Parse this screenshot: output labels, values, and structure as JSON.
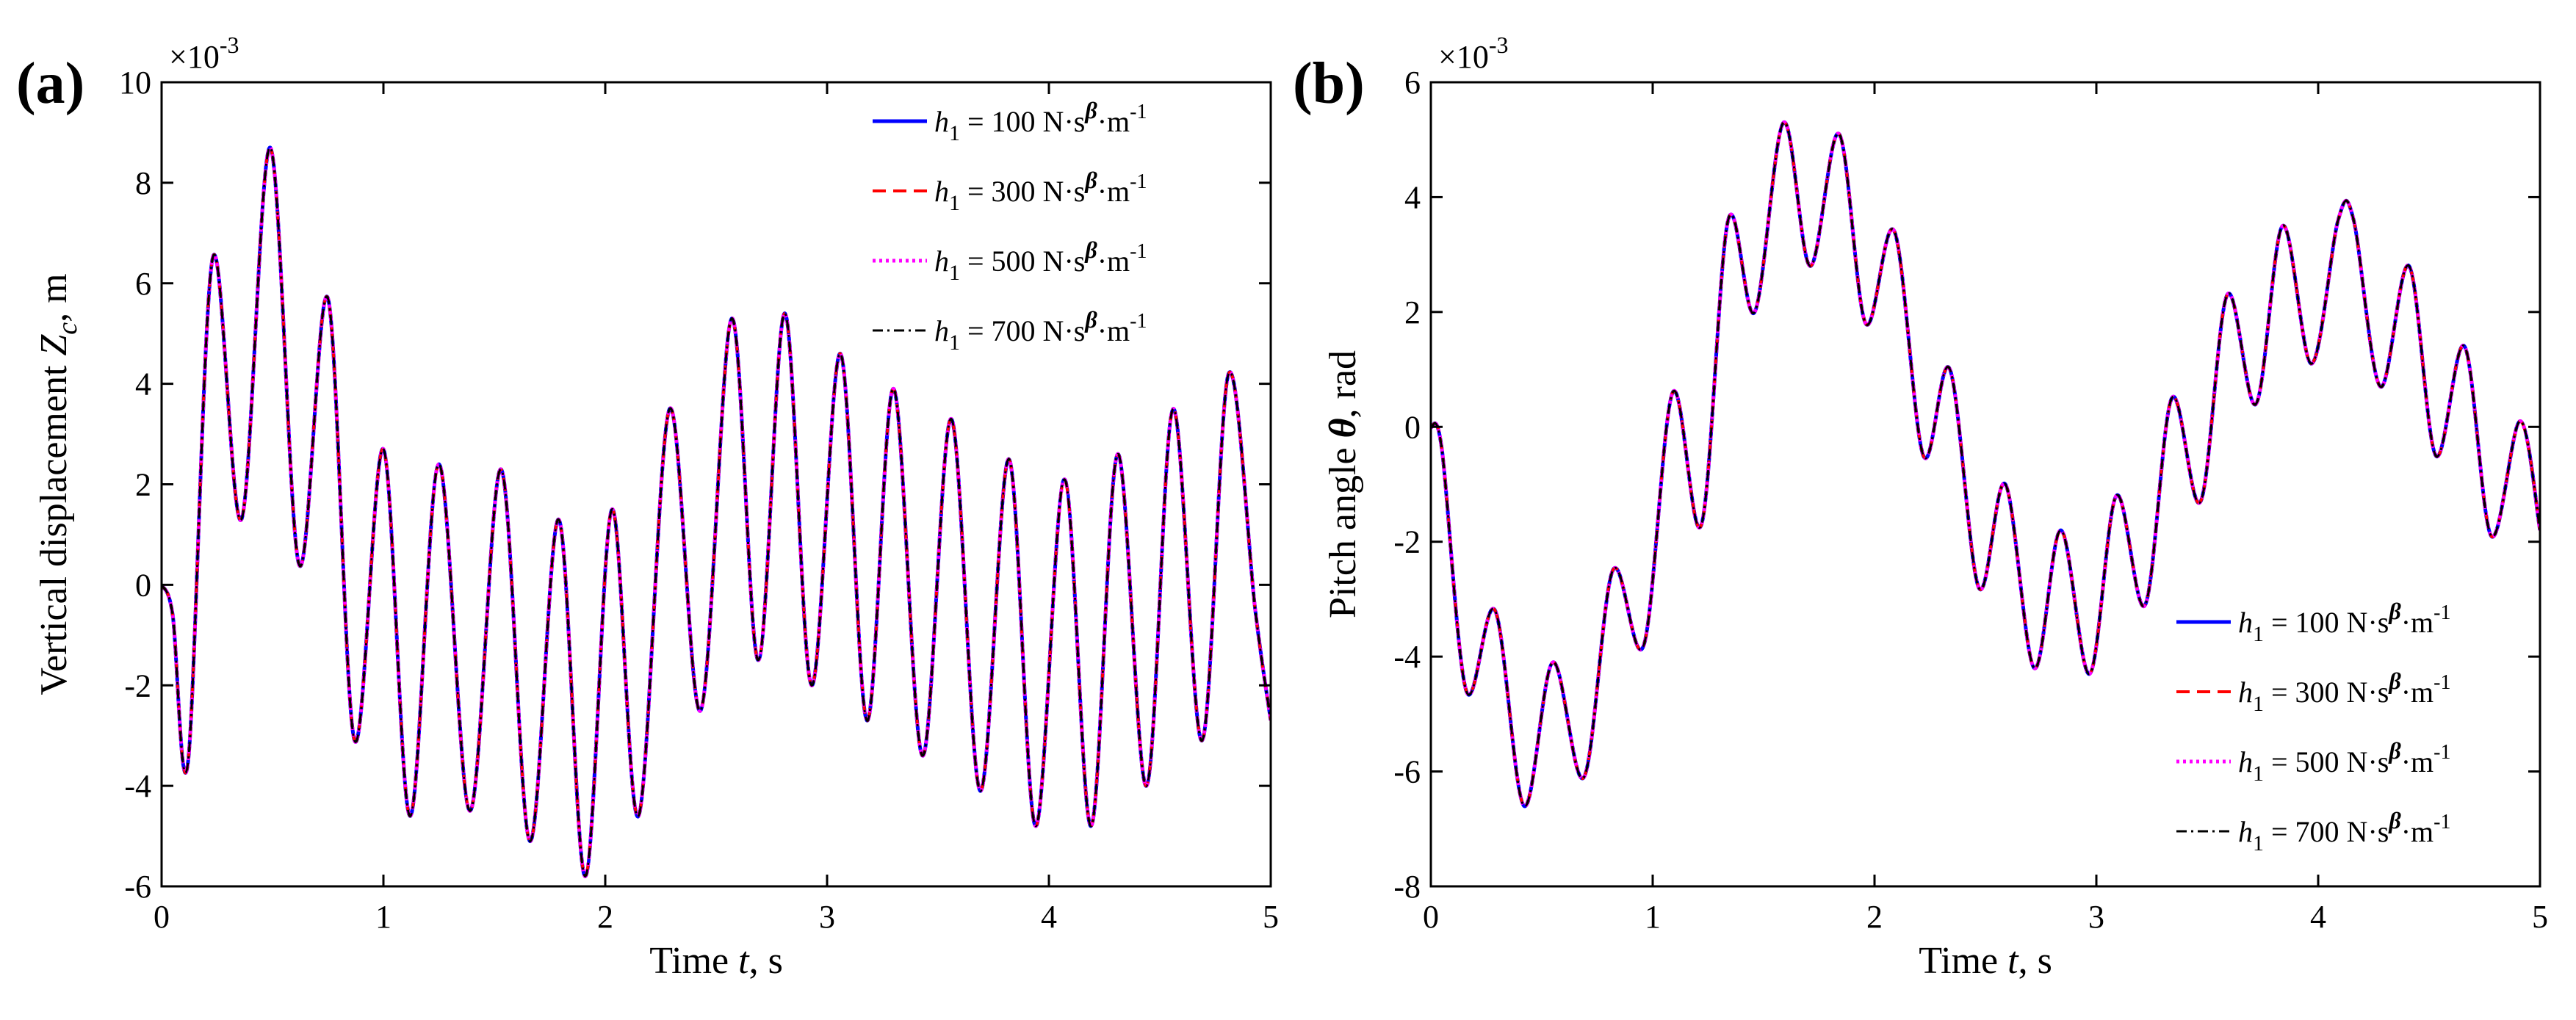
{
  "chart_data": [
    {
      "type": "line",
      "panel_label": "(a)",
      "xlabel": {
        "prefix": "Time ",
        "var": "t",
        "suffix": ", s"
      },
      "ylabel": {
        "prefix": "Vertical displacement ",
        "var": "Z",
        "sub": "c",
        "suffix": ", m"
      },
      "exponent_label": "×10",
      "exponent_power": "-3",
      "xlim": [
        0,
        5
      ],
      "ylim": [
        -6,
        10
      ],
      "xticks": [
        0,
        1,
        2,
        3,
        4,
        5
      ],
      "yticks": [
        -6,
        -4,
        -2,
        0,
        2,
        4,
        6,
        8,
        10
      ],
      "legend_position": "top-right",
      "x": [
        0,
        0.05,
        0.12,
        0.23,
        0.36,
        0.49,
        0.62,
        0.75,
        0.87,
        1.0,
        1.12,
        1.25,
        1.39,
        1.53,
        1.66,
        1.79,
        1.91,
        2.03,
        2.15,
        2.29,
        2.43,
        2.57,
        2.69,
        2.81,
        2.93,
        3.06,
        3.18,
        3.3,
        3.43,
        3.56,
        3.69,
        3.82,
        3.94,
        4.07,
        4.19,
        4.31,
        4.44,
        4.56,
        4.69,
        4.81,
        4.93,
        5.0
      ],
      "series": [
        {
          "name": "h1 = 100",
          "color": "#0000ff",
          "dash": "",
          "width": 5,
          "values": [
            0,
            -0.6,
            -3.5,
            6.5,
            1.3,
            8.7,
            0.4,
            5.7,
            -3.1,
            2.7,
            -4.6,
            2.4,
            -4.5,
            2.3,
            -5.1,
            1.3,
            -5.8,
            1.5,
            -4.6,
            3.5,
            -2.5,
            5.3,
            -1.5,
            5.4,
            -2.0,
            4.6,
            -2.7,
            3.9,
            -3.4,
            3.3,
            -4.1,
            2.5,
            -4.8,
            2.1,
            -4.8,
            2.6,
            -4.0,
            3.5,
            -3.1,
            4.2,
            -0.5,
            -2.7
          ]
        },
        {
          "name": "h1 = 300",
          "color": "#ff0000",
          "dash": "18,10",
          "width": 4,
          "values": [
            0,
            -0.6,
            -3.5,
            6.5,
            1.3,
            8.7,
            0.4,
            5.7,
            -3.1,
            2.7,
            -4.6,
            2.4,
            -4.5,
            2.3,
            -5.1,
            1.3,
            -5.8,
            1.5,
            -4.6,
            3.5,
            -2.5,
            5.3,
            -1.5,
            5.4,
            -2.0,
            4.6,
            -2.7,
            3.9,
            -3.4,
            3.3,
            -4.1,
            2.5,
            -4.8,
            2.1,
            -4.8,
            2.6,
            -4.0,
            3.5,
            -3.1,
            4.2,
            -0.5,
            -2.7
          ]
        },
        {
          "name": "h1 = 500",
          "color": "#ff00ff",
          "dash": "4,5",
          "width": 5,
          "values": [
            0,
            -0.6,
            -3.5,
            6.5,
            1.3,
            8.7,
            0.4,
            5.7,
            -3.1,
            2.7,
            -4.6,
            2.4,
            -4.5,
            2.3,
            -5.1,
            1.3,
            -5.8,
            1.5,
            -4.6,
            3.5,
            -2.5,
            5.3,
            -1.5,
            5.4,
            -2.0,
            4.6,
            -2.7,
            3.9,
            -3.4,
            3.3,
            -4.1,
            2.5,
            -4.8,
            2.1,
            -4.8,
            2.6,
            -4.0,
            3.5,
            -3.1,
            4.2,
            -0.5,
            -2.7
          ]
        },
        {
          "name": "h1 = 700",
          "color": "#000000",
          "dash": "14,6,3,6",
          "width": 3,
          "values": [
            0,
            -0.6,
            -3.5,
            6.5,
            1.3,
            8.7,
            0.4,
            5.7,
            -3.1,
            2.7,
            -4.6,
            2.4,
            -4.5,
            2.3,
            -5.1,
            1.3,
            -5.8,
            1.5,
            -4.6,
            3.5,
            -2.5,
            5.3,
            -1.5,
            5.4,
            -2.0,
            4.6,
            -2.7,
            3.9,
            -3.4,
            3.3,
            -4.1,
            2.5,
            -4.8,
            2.1,
            -4.8,
            2.6,
            -4.0,
            3.5,
            -3.1,
            4.2,
            -0.5,
            -2.7
          ]
        }
      ],
      "legend": [
        {
          "h": "h",
          "sub": "1",
          "value": " = 100 N·s",
          "beta": "β",
          "unit": "·m",
          "exp": "-1"
        },
        {
          "h": "h",
          "sub": "1",
          "value": " = 300 N·s",
          "beta": "β",
          "unit": "·m",
          "exp": "-1"
        },
        {
          "h": "h",
          "sub": "1",
          "value": " = 500 N·s",
          "beta": "β",
          "unit": "·m",
          "exp": "-1"
        },
        {
          "h": "h",
          "sub": "1",
          "value": " = 700 N·s",
          "beta": "β",
          "unit": "·m",
          "exp": "-1"
        }
      ]
    },
    {
      "type": "line",
      "panel_label": "(b)",
      "xlabel": {
        "prefix": "Time ",
        "var": "t",
        "suffix": ", s"
      },
      "ylabel": {
        "prefix": "Pitch angle ",
        "var": "θ",
        "sub": "",
        "suffix": ", rad"
      },
      "exponent_label": "×10",
      "exponent_power": "-3",
      "xlim": [
        0,
        5
      ],
      "ylim": [
        -8,
        6
      ],
      "xticks": [
        0,
        1,
        2,
        3,
        4,
        5
      ],
      "yticks": [
        -8,
        -6,
        -4,
        -2,
        0,
        2,
        4,
        6
      ],
      "legend_position": "bottom-right",
      "x": [
        0,
        0.05,
        0.16,
        0.29,
        0.42,
        0.55,
        0.69,
        0.82,
        0.96,
        1.09,
        1.22,
        1.34,
        1.46,
        1.59,
        1.71,
        1.84,
        1.96,
        2.09,
        2.22,
        2.34,
        2.47,
        2.59,
        2.72,
        2.84,
        2.97,
        3.09,
        3.22,
        3.34,
        3.47,
        3.59,
        3.72,
        3.84,
        3.97,
        4.09,
        4.16,
        4.28,
        4.41,
        4.53,
        4.66,
        4.78,
        4.91,
        5.0
      ],
      "series": [
        {
          "name": "h1 = 100",
          "color": "#0000ff",
          "dash": "",
          "width": 5,
          "values": [
            0,
            -0.4,
            -4.6,
            -3.2,
            -6.6,
            -4.1,
            -6.1,
            -2.5,
            -3.8,
            0.6,
            -1.7,
            3.6,
            2.0,
            5.3,
            2.8,
            5.1,
            1.8,
            3.4,
            -0.5,
            1.0,
            -2.8,
            -1.0,
            -4.2,
            -1.8,
            -4.3,
            -1.2,
            -3.1,
            0.5,
            -1.3,
            2.3,
            0.4,
            3.5,
            1.1,
            3.6,
            3.6,
            0.7,
            2.8,
            -0.5,
            1.4,
            -1.9,
            0.1,
            -1.8
          ]
        },
        {
          "name": "h1 = 300",
          "color": "#ff0000",
          "dash": "18,10",
          "width": 4,
          "values": [
            0,
            -0.4,
            -4.6,
            -3.2,
            -6.6,
            -4.1,
            -6.1,
            -2.5,
            -3.8,
            0.6,
            -1.7,
            3.6,
            2.0,
            5.3,
            2.8,
            5.1,
            1.8,
            3.4,
            -0.5,
            1.0,
            -2.8,
            -1.0,
            -4.2,
            -1.8,
            -4.3,
            -1.2,
            -3.1,
            0.5,
            -1.3,
            2.3,
            0.4,
            3.5,
            1.1,
            3.6,
            3.6,
            0.7,
            2.8,
            -0.5,
            1.4,
            -1.9,
            0.1,
            -1.8
          ]
        },
        {
          "name": "h1 = 500",
          "color": "#ff00ff",
          "dash": "4,5",
          "width": 5,
          "values": [
            0,
            -0.4,
            -4.6,
            -3.2,
            -6.6,
            -4.1,
            -6.1,
            -2.5,
            -3.8,
            0.6,
            -1.7,
            3.6,
            2.0,
            5.3,
            2.8,
            5.1,
            1.8,
            3.4,
            -0.5,
            1.0,
            -2.8,
            -1.0,
            -4.2,
            -1.8,
            -4.3,
            -1.2,
            -3.1,
            0.5,
            -1.3,
            2.3,
            0.4,
            3.5,
            1.1,
            3.6,
            3.6,
            0.7,
            2.8,
            -0.5,
            1.4,
            -1.9,
            0.1,
            -1.8
          ]
        },
        {
          "name": "h1 = 700",
          "color": "#000000",
          "dash": "14,6,3,6",
          "width": 3,
          "values": [
            0,
            -0.4,
            -4.6,
            -3.2,
            -6.6,
            -4.1,
            -6.1,
            -2.5,
            -3.8,
            0.6,
            -1.7,
            3.6,
            2.0,
            5.3,
            2.8,
            5.1,
            1.8,
            3.4,
            -0.5,
            1.0,
            -2.8,
            -1.0,
            -4.2,
            -1.8,
            -4.3,
            -1.2,
            -3.1,
            0.5,
            -1.3,
            2.3,
            0.4,
            3.5,
            1.1,
            3.6,
            3.6,
            0.7,
            2.8,
            -0.5,
            1.4,
            -1.9,
            0.1,
            -1.8
          ]
        }
      ],
      "legend": [
        {
          "h": "h",
          "sub": "1",
          "value": " = 100 N·s",
          "beta": "β",
          "unit": "·m",
          "exp": "-1"
        },
        {
          "h": "h",
          "sub": "1",
          "value": " = 300 N·s",
          "beta": "β",
          "unit": "·m",
          "exp": "-1"
        },
        {
          "h": "h",
          "sub": "1",
          "value": " = 500 N·s",
          "beta": "β",
          "unit": "·m",
          "exp": "-1"
        },
        {
          "h": "h",
          "sub": "1",
          "value": " = 700 N·s",
          "beta": "β",
          "unit": "·m",
          "exp": "-1"
        }
      ]
    }
  ]
}
